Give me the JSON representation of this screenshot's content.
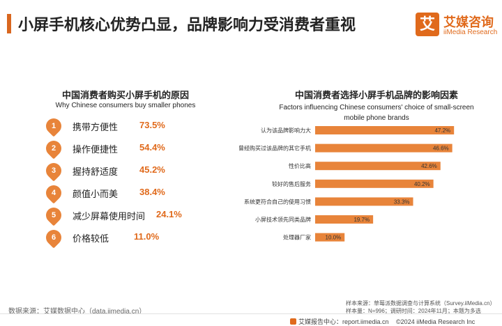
{
  "header": {
    "title": "小屏手机核心优势凸显，品牌影响力受消费者重视"
  },
  "logo": {
    "mark": "艾",
    "name_cn": "艾媒咨询",
    "name_en": "iiMedia Research"
  },
  "left_panel": {
    "title_cn": "中国消费者购买小屏手机的原因",
    "title_en": "Why Chinese consumers buy smaller phones",
    "reasons": [
      {
        "num": "1",
        "label": "携带方便性",
        "value": "73.5%"
      },
      {
        "num": "2",
        "label": "操作便捷性",
        "value": "54.4%"
      },
      {
        "num": "3",
        "label": "握持舒适度",
        "value": "45.2%"
      },
      {
        "num": "4",
        "label": "颜值小而美",
        "value": "38.4%"
      },
      {
        "num": "5",
        "label": "减少屏幕使用时间",
        "value": "24.1%"
      },
      {
        "num": "6",
        "label": "价格较低",
        "value": "11.0%"
      }
    ]
  },
  "right_panel": {
    "title_cn": "中国消费者选择小屏手机品牌的影响因素",
    "title_en_line1": "Factors influencing Chinese consumers' choice of small-screen",
    "title_en_line2": "mobile phone brands"
  },
  "chart_data": {
    "type": "bar",
    "orientation": "horizontal",
    "title": "中国消费者选择小屏手机品牌的影响因素",
    "categories": [
      "认为该品牌影响力大",
      "曾经购买过该品牌的其它手机",
      "性价比高",
      "较好的售后服务",
      "系统更符合自己的使用习惯",
      "小屏技术领先同类品牌",
      "处理器厂家"
    ],
    "values": [
      47.2,
      46.6,
      42.6,
      40.2,
      33.3,
      19.7,
      10.0
    ],
    "value_labels": [
      "47.2%",
      "46.6%",
      "42.6%",
      "40.2%",
      "33.3%",
      "19.7%",
      "10.0%"
    ],
    "xlim": [
      0,
      50
    ],
    "grid": false,
    "bar_color": "#e8843a"
  },
  "footer": {
    "source": "数据来源：艾媒数据中心（data.iimedia.cn）",
    "sample_source": "样本来源：草莓派数据调查与计算系统（Survey.iiMedia.cn）",
    "sample_size": "样本量：N=996；调研时间：2024年11月；本题为多选",
    "report_site": "艾媒报告中心：report.iimedia.cn",
    "copyright": "©2024 iiMedia Research Inc"
  },
  "colors": {
    "accent": "#e06a1c",
    "bar": "#e8843a"
  }
}
